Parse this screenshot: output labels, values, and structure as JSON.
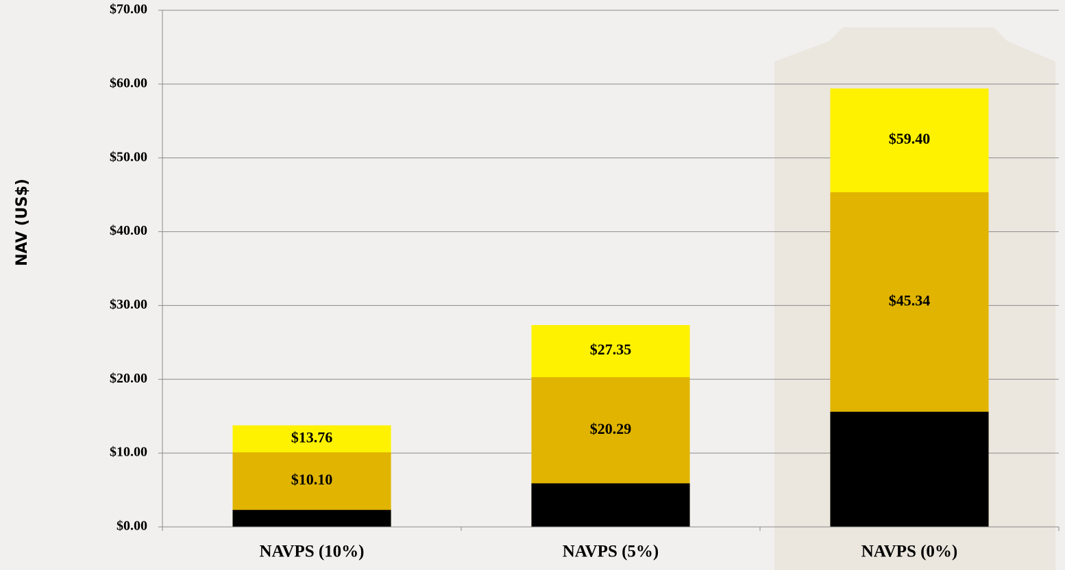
{
  "chart_data": {
    "type": "bar",
    "y_label": "NAV (US$)",
    "categories": [
      "NAVPS (10%)",
      "NAVPS (5%)",
      "NAVPS (0%)"
    ],
    "series": [
      {
        "color": "#fff200",
        "values": [
          13.76,
          27.35,
          59.4
        ],
        "value_labels": [
          "$13.76",
          "$27.35",
          "$59.40"
        ]
      },
      {
        "color": "#e0b400",
        "values": [
          10.1,
          20.29,
          45.34
        ],
        "value_labels": [
          "$10.10",
          "$20.29",
          "$45.34"
        ]
      },
      {
        "color": "#000000",
        "values": [
          2.3,
          5.9,
          15.6
        ]
      }
    ],
    "ylim": [
      0,
      70
    ],
    "yticks": [
      {
        "value": 0,
        "label": "$0.00"
      },
      {
        "value": 10,
        "label": "$10.00"
      },
      {
        "value": 20,
        "label": "$20.00"
      },
      {
        "value": 30,
        "label": "$30.00"
      },
      {
        "value": 40,
        "label": "$40.00"
      },
      {
        "value": 50,
        "label": "$50.00"
      },
      {
        "value": 60,
        "label": "$60.00"
      },
      {
        "value": 70,
        "label": "$70.00"
      }
    ],
    "grid": true
  }
}
